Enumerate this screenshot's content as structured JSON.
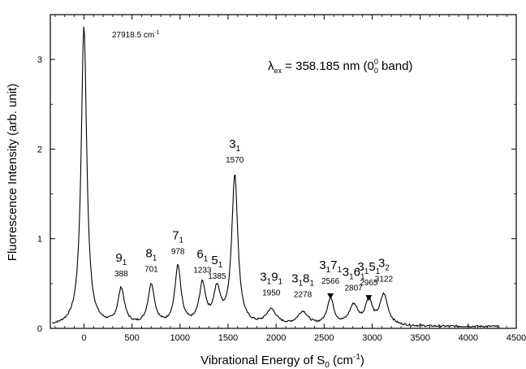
{
  "chart_data": {
    "type": "line",
    "title": "",
    "xlabel": {
      "prefix": "Vibrational Energy of S",
      "sub": "0",
      "mid": " (cm",
      "sup": "-1",
      "end": ")"
    },
    "ylabel": "Fluorescence Intensity (arb. unit)",
    "xlim": [
      -350,
      4500
    ],
    "ylim": [
      0,
      3.5
    ],
    "x_ticks": [
      0,
      500,
      1000,
      1500,
      2000,
      2500,
      3000,
      3500,
      4000,
      4500
    ],
    "y_ticks": [
      0,
      1,
      2,
      3
    ],
    "grid": false,
    "annotation_origin": {
      "text": "27918.5 cm",
      "sup": "-1"
    },
    "annotation_excitation": {
      "lambda": "λ",
      "lsub": "ex",
      "text": " = 358.185 nm (0",
      "sup": "0",
      "sub": "0",
      "end": " band)"
    },
    "peaks": [
      {
        "x": 0,
        "y": 3.35
      },
      {
        "x": 388,
        "y": 0.4,
        "name": "9",
        "sub": "1",
        "value": "388"
      },
      {
        "x": 701,
        "y": 0.45,
        "name": "8",
        "sub": "1",
        "value": "701"
      },
      {
        "x": 978,
        "y": 0.65,
        "name": "7",
        "sub": "1",
        "value": "978"
      },
      {
        "x": 1233,
        "y": 0.44,
        "name": "6",
        "sub": "1",
        "value": "1233"
      },
      {
        "x": 1385,
        "y": 0.37,
        "name": "5",
        "sub": "1",
        "value": "1385"
      },
      {
        "x": 1570,
        "y": 1.67,
        "name": "3",
        "sub": "1",
        "value": "1570"
      },
      {
        "x": 1950,
        "y": 0.17,
        "name": "3",
        "sub": "1",
        "name2": "9",
        "sub2": "1",
        "value": "1950"
      },
      {
        "x": 2278,
        "y": 0.15,
        "name": "3",
        "sub": "1",
        "name2": "8",
        "sub2": "1",
        "value": "2278"
      },
      {
        "x": 2566,
        "y": 0.3,
        "name": "3",
        "sub": "1",
        "name2": "7",
        "sub2": "1",
        "value": "2566"
      },
      {
        "x": 2807,
        "y": 0.22,
        "name": "3",
        "sub": "1",
        "name2": "6",
        "sub2": "1",
        "value": "2807"
      },
      {
        "x": 2965,
        "y": 0.28,
        "name": "3",
        "sub": "1",
        "name2": "5",
        "sub2": "1",
        "value": "2965"
      },
      {
        "x": 3122,
        "y": 0.34,
        "name": "3",
        "sub": "2",
        "value": "3122"
      }
    ]
  }
}
